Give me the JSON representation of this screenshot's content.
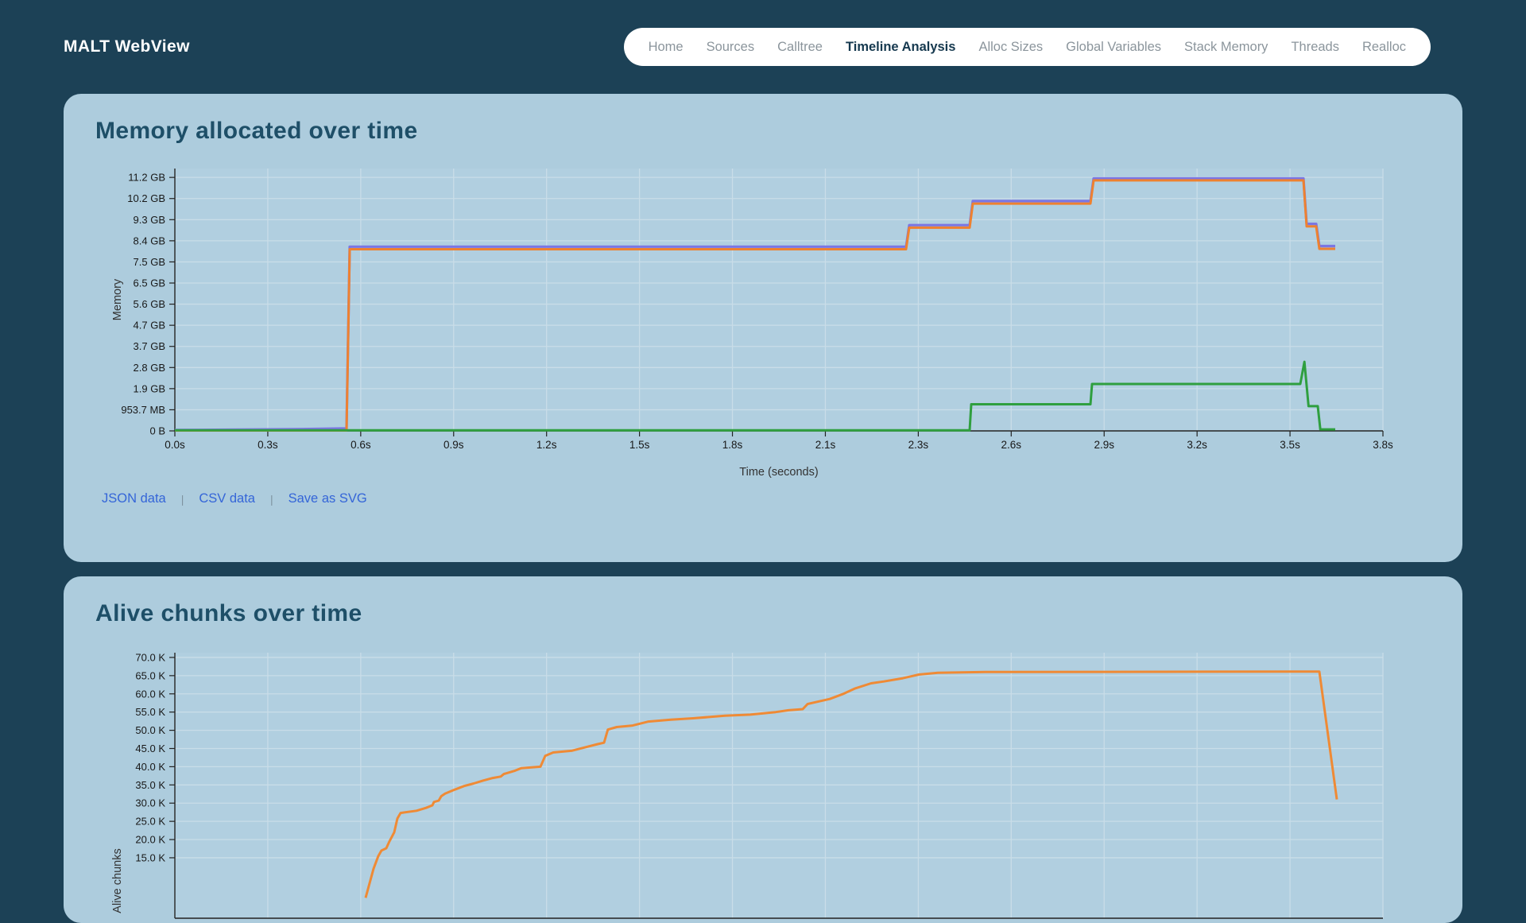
{
  "header": {
    "brand": "MALT WebView",
    "nav": [
      {
        "label": "Home",
        "slug": "home",
        "active": false
      },
      {
        "label": "Sources",
        "slug": "sources",
        "active": false
      },
      {
        "label": "Calltree",
        "slug": "calltree",
        "active": false
      },
      {
        "label": "Timeline Analysis",
        "slug": "timeline-analysis",
        "active": true
      },
      {
        "label": "Alloc Sizes",
        "slug": "alloc-sizes",
        "active": false
      },
      {
        "label": "Global Variables",
        "slug": "global-variables",
        "active": false
      },
      {
        "label": "Stack Memory",
        "slug": "stack-memory",
        "active": false
      },
      {
        "label": "Threads",
        "slug": "threads",
        "active": false
      },
      {
        "label": "Realloc",
        "slug": "realloc",
        "active": false
      }
    ]
  },
  "colors": {
    "page_bg": "#1c4156",
    "card_bg": "#adccdd",
    "plot_bg": "#b1cfe0",
    "grid": "#c9dde8",
    "axis": "#222222",
    "tick_text": "#181818",
    "axis_title_text": "#333333",
    "title_text": "#1e4f68",
    "link_blue": "#3465d8",
    "series_purple": "#7b76e3",
    "series_orange": "#ee8130",
    "series_green": "#2f9f3f",
    "chunks_orange": "#ef8a35"
  },
  "chart_data": [
    {
      "type": "line",
      "title": "Memory allocated over time",
      "xlabel": "Time (seconds)",
      "ylabel": "Memory",
      "x_domain": [
        0,
        3.8
      ],
      "x_tick_labels": [
        "0.0s",
        "0.3s",
        "0.6s",
        "0.9s",
        "1.2s",
        "1.5s",
        "1.8s",
        "2.1s",
        "2.3s",
        "2.6s",
        "2.9s",
        "3.2s",
        "3.5s",
        "3.8s"
      ],
      "y_unit": "bytes (1e9)",
      "y_ticks": [
        {
          "v": 0,
          "label": "0 B"
        },
        {
          "v": 1,
          "label": "953.7 MB"
        },
        {
          "v": 2,
          "label": "1.9 GB"
        },
        {
          "v": 3,
          "label": "2.8 GB"
        },
        {
          "v": 4,
          "label": "3.7 GB"
        },
        {
          "v": 5,
          "label": "4.7 GB"
        },
        {
          "v": 6,
          "label": "5.6 GB"
        },
        {
          "v": 7,
          "label": "6.5 GB"
        },
        {
          "v": 8,
          "label": "7.5 GB"
        },
        {
          "v": 9,
          "label": "8.4 GB"
        },
        {
          "v": 10,
          "label": "9.3 GB"
        },
        {
          "v": 11,
          "label": "10.2 GB"
        },
        {
          "v": 12,
          "label": "11.2 GB"
        }
      ],
      "grid": true,
      "legend": "none",
      "series": [
        {
          "name": "purple-series",
          "color": "#7b76e3",
          "width": 3.2,
          "points": [
            [
              0,
              0.04
            ],
            [
              0.37,
              0.08
            ],
            [
              0.54,
              0.12
            ],
            [
              0.55,
              8.72
            ],
            [
              2.3,
              8.72
            ],
            [
              2.31,
              9.74
            ],
            [
              2.5,
              9.74
            ],
            [
              2.51,
              10.88
            ],
            [
              2.88,
              10.88
            ],
            [
              2.89,
              11.95
            ],
            [
              3.55,
              11.95
            ],
            [
              3.56,
              9.8
            ],
            [
              3.59,
              9.8
            ],
            [
              3.6,
              8.75
            ],
            [
              3.65,
              8.75
            ]
          ]
        },
        {
          "name": "orange-series",
          "color": "#ee8130",
          "width": 3,
          "points": [
            [
              0,
              0.02
            ],
            [
              0.54,
              0.02
            ],
            [
              0.55,
              8.6
            ],
            [
              2.3,
              8.6
            ],
            [
              2.31,
              9.62
            ],
            [
              2.5,
              9.62
            ],
            [
              2.51,
              10.76
            ],
            [
              2.88,
              10.76
            ],
            [
              2.89,
              11.86
            ],
            [
              3.55,
              11.86
            ],
            [
              3.56,
              9.68
            ],
            [
              3.59,
              9.68
            ],
            [
              3.6,
              8.62
            ],
            [
              3.65,
              8.62
            ]
          ]
        },
        {
          "name": "green-series",
          "color": "#2f9f3f",
          "width": 3,
          "points": [
            [
              0,
              0.03
            ],
            [
              2.5,
              0.03
            ],
            [
              2.505,
              1.26
            ],
            [
              2.88,
              1.26
            ],
            [
              2.885,
              2.22
            ],
            [
              3.54,
              2.22
            ],
            [
              3.553,
              3.27
            ],
            [
              3.566,
              1.17
            ],
            [
              3.595,
              1.17
            ],
            [
              3.603,
              0.07
            ],
            [
              3.65,
              0.07
            ]
          ]
        }
      ],
      "links": [
        {
          "label": "JSON data",
          "slug": "json-data"
        },
        {
          "label": "CSV data",
          "slug": "csv-data"
        },
        {
          "label": "Save as SVG",
          "slug": "save-as-svg"
        }
      ],
      "link_separator": "|"
    },
    {
      "type": "line",
      "title": "Alive chunks over time",
      "xlabel": "",
      "ylabel": "Alive chunks",
      "x_domain": [
        0,
        3.8
      ],
      "x_tick_labels": [],
      "y_unit": "chunks (thousands)",
      "y_ticks": [
        {
          "v": 15,
          "label": "15.0 K"
        },
        {
          "v": 20,
          "label": "20.0 K"
        },
        {
          "v": 25,
          "label": "25.0 K"
        },
        {
          "v": 30,
          "label": "30.0 K"
        },
        {
          "v": 35,
          "label": "35.0 K"
        },
        {
          "v": 40,
          "label": "40.0 K"
        },
        {
          "v": 45,
          "label": "45.0 K"
        },
        {
          "v": 50,
          "label": "50.0 K"
        },
        {
          "v": 55,
          "label": "55.0 K"
        },
        {
          "v": 60,
          "label": "60.0 K"
        },
        {
          "v": 65,
          "label": "65.0 K"
        },
        {
          "v": 70,
          "label": "70.0 K"
        }
      ],
      "grid": true,
      "legend": "none",
      "series": [
        {
          "name": "chunks-orange-series",
          "color": "#ef8a35",
          "width": 3,
          "points": [
            [
              0.6,
              4
            ],
            [
              0.625,
              12
            ],
            [
              0.64,
              15.5
            ],
            [
              0.65,
              17
            ],
            [
              0.665,
              17.6
            ],
            [
              0.675,
              19.5
            ],
            [
              0.69,
              22
            ],
            [
              0.7,
              25.8
            ],
            [
              0.71,
              27.3
            ],
            [
              0.76,
              27.9
            ],
            [
              0.79,
              28.7
            ],
            [
              0.81,
              29.4
            ],
            [
              0.815,
              30.3
            ],
            [
              0.83,
              30.7
            ],
            [
              0.838,
              31.9
            ],
            [
              0.85,
              32.6
            ],
            [
              0.88,
              33.7
            ],
            [
              0.91,
              34.7
            ],
            [
              0.94,
              35.4
            ],
            [
              0.97,
              36.2
            ],
            [
              1.0,
              36.9
            ],
            [
              1.025,
              37.3
            ],
            [
              1.035,
              38.0
            ],
            [
              1.07,
              38.9
            ],
            [
              1.09,
              39.6
            ],
            [
              1.15,
              40.0
            ],
            [
              1.165,
              43.0
            ],
            [
              1.19,
              43.9
            ],
            [
              1.25,
              44.4
            ],
            [
              1.29,
              45.3
            ],
            [
              1.33,
              46.2
            ],
            [
              1.35,
              46.6
            ],
            [
              1.362,
              50.2
            ],
            [
              1.39,
              50.9
            ],
            [
              1.44,
              51.3
            ],
            [
              1.49,
              52.4
            ],
            [
              1.56,
              52.9
            ],
            [
              1.63,
              53.3
            ],
            [
              1.73,
              54.0
            ],
            [
              1.81,
              54.3
            ],
            [
              1.89,
              55.0
            ],
            [
              1.93,
              55.5
            ],
            [
              1.975,
              55.8
            ],
            [
              1.99,
              57.2
            ],
            [
              2.06,
              58.6
            ],
            [
              2.1,
              59.9
            ],
            [
              2.14,
              61.5
            ],
            [
              2.19,
              62.9
            ],
            [
              2.23,
              63.4
            ],
            [
              2.29,
              64.3
            ],
            [
              2.34,
              65.3
            ],
            [
              2.4,
              65.8
            ],
            [
              2.55,
              66.0
            ],
            [
              3.52,
              66.1
            ],
            [
              3.6,
              66.1
            ],
            [
              3.655,
              31
            ]
          ]
        }
      ]
    }
  ]
}
